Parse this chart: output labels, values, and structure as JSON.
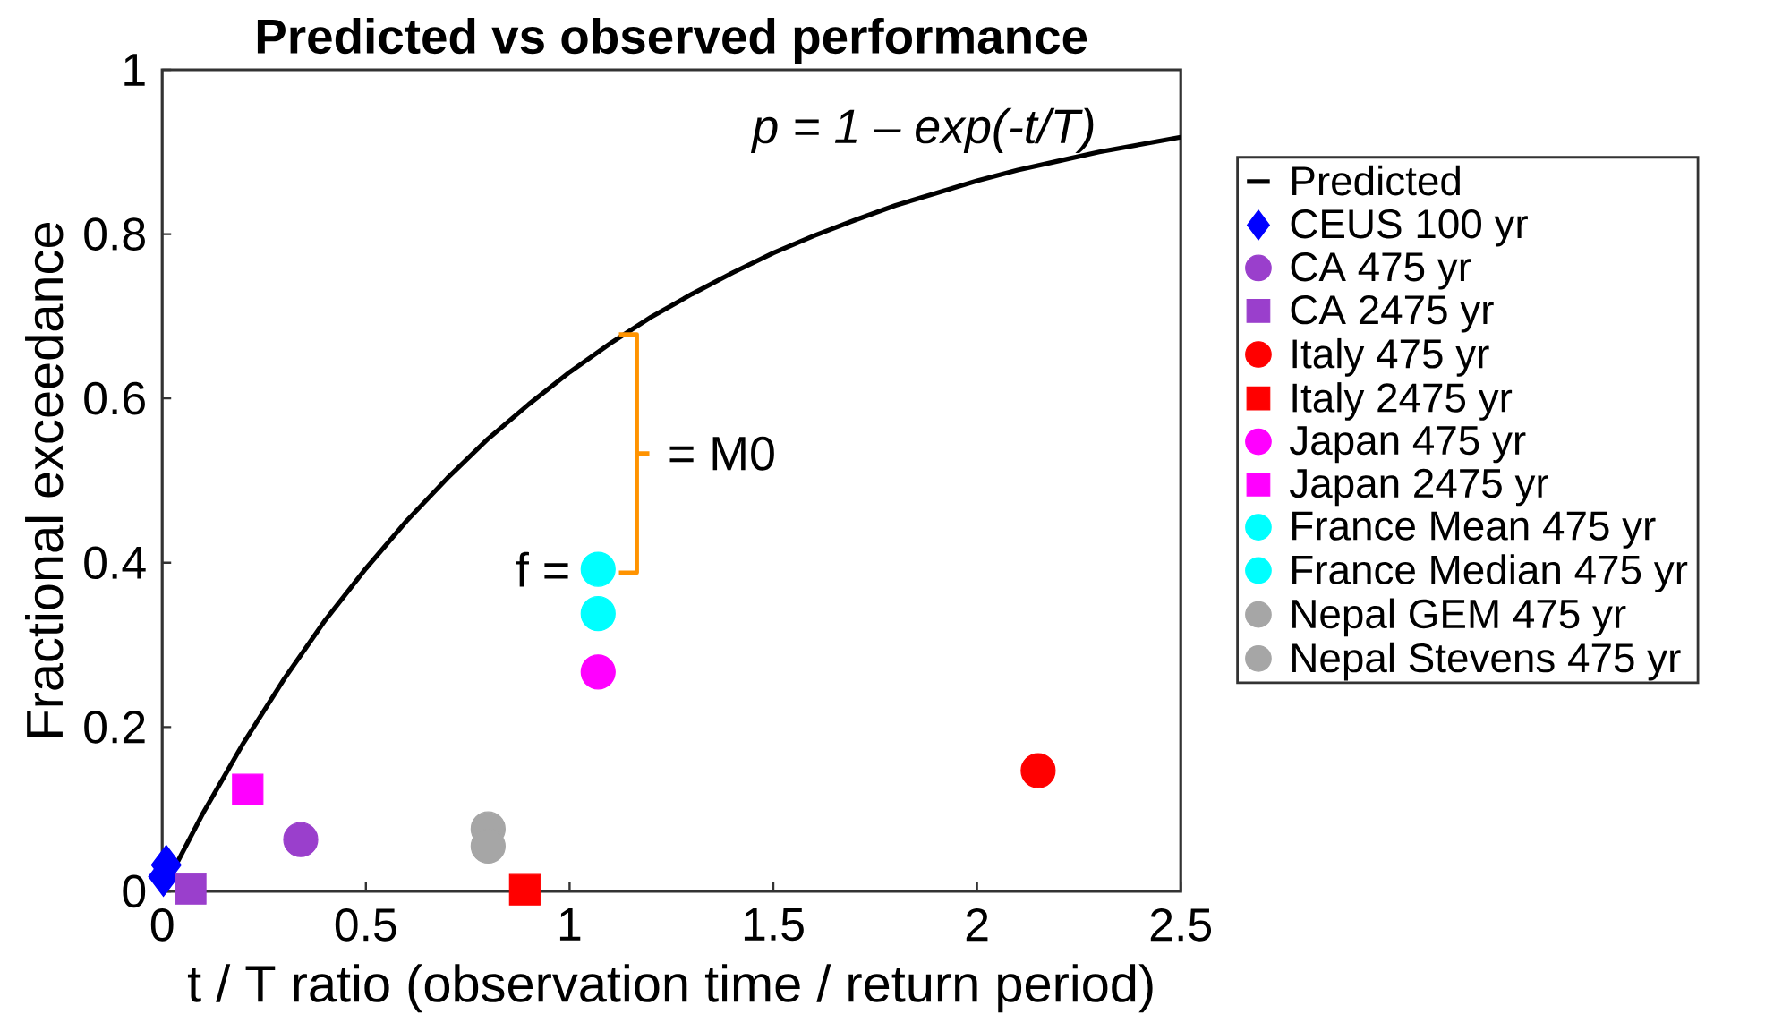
{
  "chart_data": {
    "type": "scatter",
    "title": "Predicted vs observed performance",
    "xlabel": "t / T ratio (observation time / return period)",
    "ylabel": "Fractional exceedance",
    "xlim": [
      0,
      2.5
    ],
    "ylim": [
      0,
      1
    ],
    "xticks": [
      0,
      0.5,
      1,
      1.5,
      2,
      2.5
    ],
    "yticks": [
      0,
      0.2,
      0.4,
      0.6,
      0.8,
      1
    ],
    "grid": false,
    "legend": "right",
    "series": [
      {
        "name": "Predicted",
        "type": "line",
        "color": "#000000",
        "marker": "none",
        "line_style": "solid",
        "x": [
          0,
          0.1,
          0.2,
          0.3,
          0.4,
          0.5,
          0.6,
          0.7,
          0.8,
          0.9,
          1.0,
          1.1,
          1.2,
          1.3,
          1.4,
          1.5,
          1.6,
          1.7,
          1.8,
          1.9,
          2.0,
          2.1,
          2.2,
          2.3,
          2.4,
          2.5
        ],
        "values": [
          0,
          0.095,
          0.181,
          0.259,
          0.33,
          0.393,
          0.451,
          0.503,
          0.551,
          0.593,
          0.632,
          0.667,
          0.699,
          0.727,
          0.753,
          0.777,
          0.798,
          0.817,
          0.835,
          0.85,
          0.865,
          0.878,
          0.889,
          0.9,
          0.909,
          0.918
        ]
      },
      {
        "name": "CEUS 100 yr",
        "color": "#0000ff",
        "marker": "diamond",
        "x": [
          0.003,
          0.01
        ],
        "values": [
          0.018,
          0.032
        ]
      },
      {
        "name": "CA 475 yr",
        "color": "#9a3fcc",
        "marker": "circle",
        "x": [
          0.34
        ],
        "values": [
          0.063
        ]
      },
      {
        "name": "CA 2475 yr",
        "color": "#9a3fcc",
        "marker": "square",
        "x": [
          0.07
        ],
        "values": [
          0.003
        ]
      },
      {
        "name": "Italy 475 yr",
        "color": "#ff0000",
        "marker": "circle",
        "x": [
          2.15
        ],
        "values": [
          0.147
        ]
      },
      {
        "name": "Italy 2475 yr",
        "color": "#ff0000",
        "marker": "square",
        "x": [
          0.89
        ],
        "values": [
          0.002
        ]
      },
      {
        "name": "Japan 475 yr",
        "color": "#ff00ff",
        "marker": "circle",
        "x": [
          1.07
        ],
        "values": [
          0.267
        ]
      },
      {
        "name": "Japan 2475 yr",
        "color": "#ff00ff",
        "marker": "square",
        "x": [
          0.21
        ],
        "values": [
          0.124
        ]
      },
      {
        "name": "France Mean 475 yr",
        "color": "#00ffff",
        "marker": "circle",
        "x": [
          1.07
        ],
        "values": [
          0.338
        ]
      },
      {
        "name": "France Median 475 yr",
        "color": "#00ffff",
        "marker": "circle",
        "x": [
          1.07
        ],
        "values": [
          0.392
        ]
      },
      {
        "name": "Nepal GEM 475 yr",
        "color": "#a6a6a6",
        "marker": "circle",
        "x": [
          0.8
        ],
        "values": [
          0.076
        ]
      },
      {
        "name": "Nepal Stevens 475 yr",
        "color": "#a6a6a6",
        "marker": "circle",
        "x": [
          0.8
        ],
        "values": [
          0.055
        ]
      }
    ],
    "annotations": [
      "p = 1 – exp(-t/T)",
      "= M0",
      {
        "text": "f =",
        "x": 1.07,
        "y": 0.392
      }
    ]
  }
}
